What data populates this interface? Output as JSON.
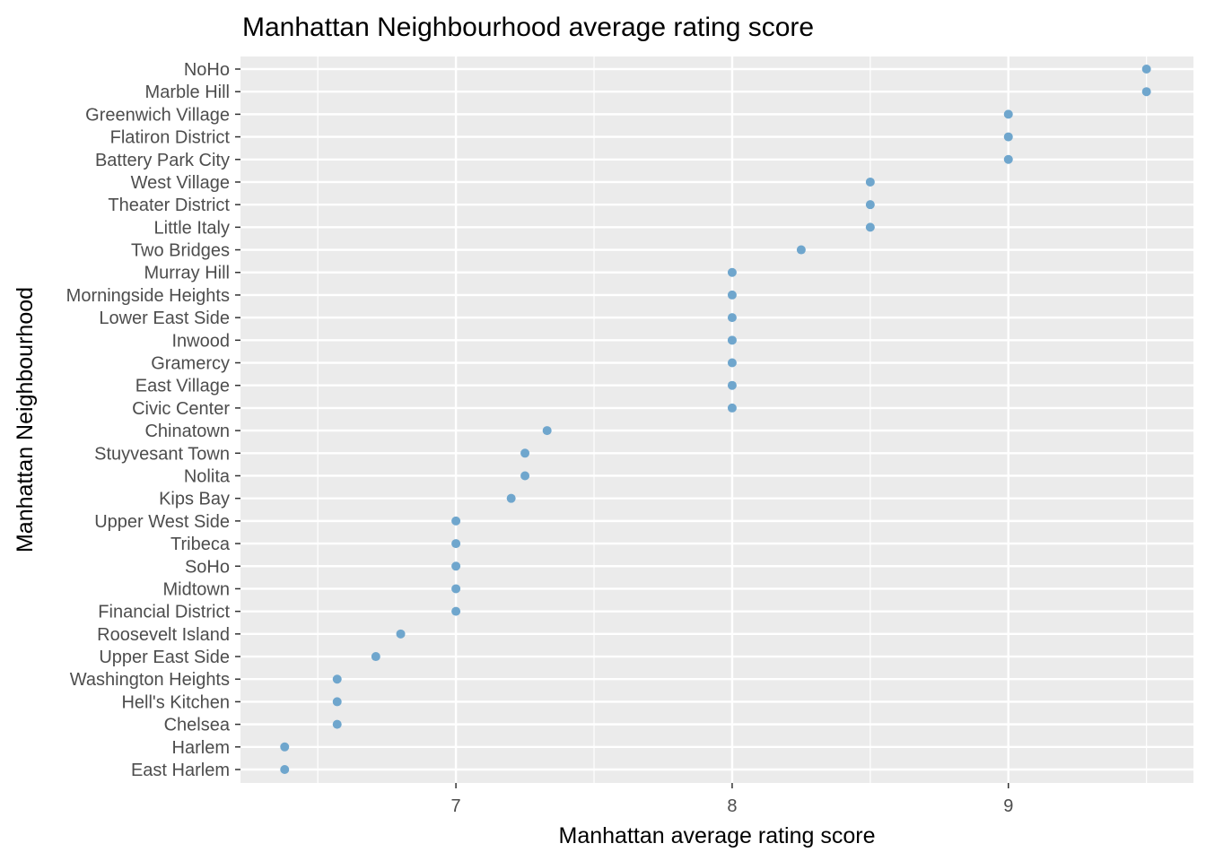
{
  "chart_data": {
    "type": "scatter",
    "title": "Manhattan Neighbourhood average rating score",
    "xlabel": "Manhattan average rating score",
    "ylabel": "Manhattan Neighbourhood",
    "xlim": [
      6.22,
      9.67
    ],
    "x_ticks": [
      "7",
      "8",
      "9"
    ],
    "grid": true,
    "background_color": "#ebebeb",
    "point_color": "#6fa6cd",
    "categories": [
      "NoHo",
      "Marble Hill",
      "Greenwich Village",
      "Flatiron District",
      "Battery Park City",
      "West Village",
      "Theater District",
      "Little Italy",
      "Two Bridges",
      "Murray Hill",
      "Morningside Heights",
      "Lower East Side",
      "Inwood",
      "Gramercy",
      "East Village",
      "Civic Center",
      "Chinatown",
      "Stuyvesant Town",
      "Nolita",
      "Kips Bay",
      "Upper West Side",
      "Tribeca",
      "SoHo",
      "Midtown",
      "Financial District",
      "Roosevelt Island",
      "Upper East Side",
      "Washington Heights",
      "Hell's Kitchen",
      "Chelsea",
      "Harlem",
      "East Harlem"
    ],
    "values": [
      9.5,
      9.5,
      9.0,
      9.0,
      9.0,
      8.5,
      8.5,
      8.5,
      8.25,
      8.0,
      8.0,
      8.0,
      8.0,
      8.0,
      8.0,
      8.0,
      7.33,
      7.25,
      7.25,
      7.2,
      7.0,
      7.0,
      7.0,
      7.0,
      7.0,
      6.8,
      6.71,
      6.57,
      6.57,
      6.57,
      6.38,
      6.38
    ]
  }
}
